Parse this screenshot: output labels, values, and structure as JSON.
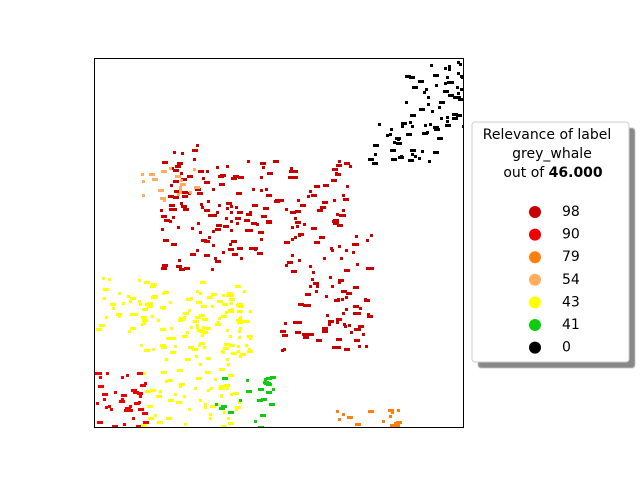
{
  "chart_data": {
    "type": "relevance-map",
    "legend_title": [
      "Relevance of label",
      "grey_whale",
      "out of"
    ],
    "score": {
      "value": 46,
      "label": "46.000"
    },
    "series": [
      {
        "name": "98",
        "color": "#c80000",
        "values": [
          98
        ]
      },
      {
        "name": "90",
        "color": "#ee0000",
        "values": [
          90
        ]
      },
      {
        "name": "79",
        "color": "#ff7f0e",
        "values": [
          79
        ]
      },
      {
        "name": "54",
        "color": "#ffad60",
        "values": [
          54
        ]
      },
      {
        "name": "43",
        "color": "#ffff00",
        "values": [
          43
        ]
      },
      {
        "name": "41",
        "color": "#10cc10",
        "values": [
          41
        ]
      },
      {
        "name": "0",
        "color": "#000000",
        "values": [
          0
        ]
      }
    ]
  }
}
